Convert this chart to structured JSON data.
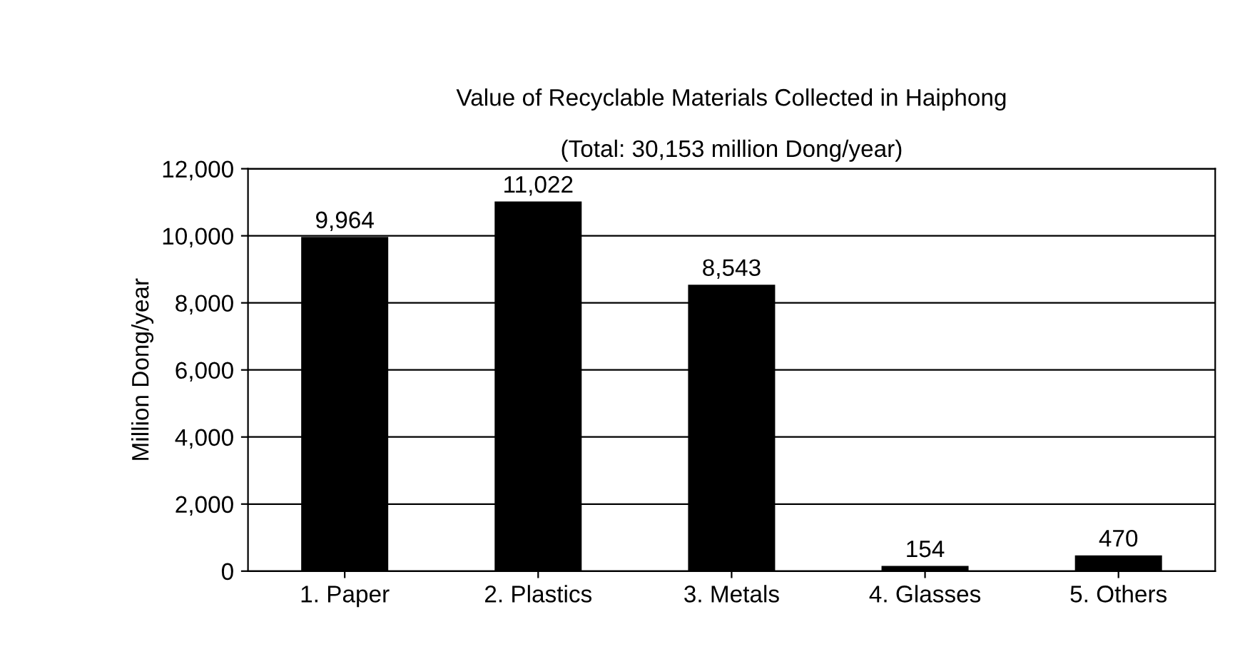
{
  "chart_data": {
    "type": "bar",
    "title": "Value of Recyclable Materials Collected in Haiphong",
    "subtitle": "(Total: 30,153 million Dong/year)",
    "ylabel": "Million Dong/year",
    "categories": [
      "1. Paper",
      "2. Plastics",
      "3. Metals",
      "4. Glasses",
      "5. Others"
    ],
    "values": [
      9964,
      11022,
      8543,
      154,
      470
    ],
    "color": "#000000",
    "ylim": [
      0,
      12000
    ],
    "yticks": [
      {
        "value": 0,
        "label": "0"
      },
      {
        "value": 2000,
        "label": "2,000"
      },
      {
        "value": 4000,
        "label": "4,000"
      },
      {
        "value": 6000,
        "label": "6,000"
      },
      {
        "value": 8000,
        "label": "8,000"
      },
      {
        "value": 10000,
        "label": "10,000"
      },
      {
        "value": 12000,
        "label": "12,000"
      }
    ],
    "value_labels": [
      "9,964",
      "11,022",
      "8,543",
      "154",
      "470"
    ],
    "grid": "y",
    "legend": false
  }
}
